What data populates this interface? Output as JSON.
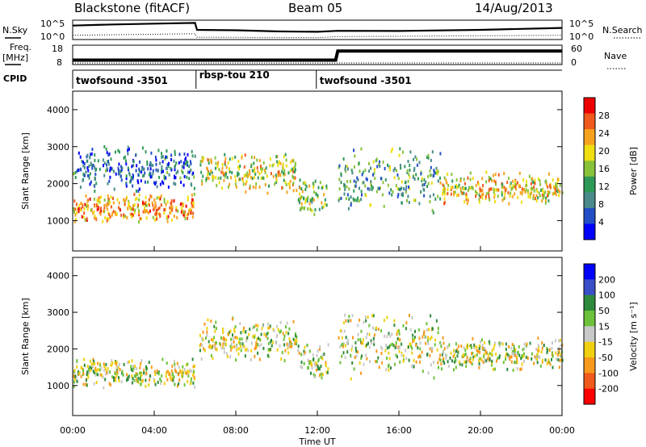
{
  "header": {
    "station": "Blackstone (fitACF)",
    "beam": "Beam 05",
    "date": "14/Aug/2013"
  },
  "panel_labels": {
    "nsky": "N.Sky",
    "nsearch": "N.Search",
    "freq_line1": "Freq.",
    "freq_line2": "[MHz]",
    "nave": "Nave",
    "cpid": "CPID"
  },
  "colors": {
    "power": [
      "#0000ff",
      "#224ec6",
      "#4a8a8a",
      "#2f9a58",
      "#88c23a",
      "#f0de12",
      "#f7a21e",
      "#f05a1c",
      "#ee0000"
    ],
    "velocity": [
      "#ff0000",
      "#f05a1c",
      "#f79a1c",
      "#f0d010",
      "#c8c8c8",
      "#6cc23a",
      "#2e8a3c",
      "#3a4ec8",
      "#0000ff"
    ]
  },
  "chart_data": [
    {
      "type": "line",
      "name": "noise-panel",
      "xlim": [
        0,
        24
      ],
      "left_ticks": [
        "10^5",
        "10^0"
      ],
      "right_ticks": [
        "10^5",
        "10^0"
      ],
      "series": [
        {
          "name": "N.Sky",
          "x": [
            0,
            2,
            4,
            6,
            6.1,
            8,
            10,
            12,
            13,
            16,
            20,
            24
          ],
          "y_frac": [
            0.72,
            0.78,
            0.82,
            0.86,
            0.5,
            0.48,
            0.42,
            0.4,
            0.45,
            0.44,
            0.5,
            0.6
          ]
        },
        {
          "name": "N.Search",
          "x": [
            0,
            6,
            6.1,
            12,
            13,
            24
          ],
          "y_frac": [
            0.22,
            0.3,
            0.12,
            0.1,
            0.15,
            0.22
          ]
        }
      ]
    },
    {
      "type": "line",
      "name": "frequency-panel",
      "xlim": [
        0,
        24
      ],
      "left_ticks": [
        18,
        8
      ],
      "right_ticks": [
        60,
        0
      ],
      "series": [
        {
          "name": "Freq.",
          "x": [
            0,
            12.9,
            13,
            24
          ],
          "y": [
            10.3,
            10.3,
            15.0,
            15.0
          ]
        },
        {
          "name": "Nave",
          "x": [
            0,
            24
          ],
          "y": [
            1,
            1
          ]
        }
      ]
    },
    {
      "type": "table",
      "name": "cpid-panel",
      "segments": [
        {
          "label": "twofsound -3501",
          "start": 0,
          "end": 6.05
        },
        {
          "label": "rbsp-tou 210",
          "start": 6.05,
          "end": 11.95
        },
        {
          "label": "twofsound -3501",
          "start": 11.95,
          "end": 24
        }
      ]
    },
    {
      "type": "heatmap",
      "name": "power",
      "ylabel": "Slant Range [km]",
      "xlim": [
        0,
        24
      ],
      "ylim": [
        180,
        4500
      ],
      "yticks": [
        1000,
        2000,
        3000,
        4000
      ],
      "colorbar_label": "Power [dB]",
      "colorbar_ticks": [
        4,
        8,
        12,
        16,
        20,
        24,
        28
      ],
      "bands": [
        {
          "t0": 0,
          "t1": 6,
          "r0": 950,
          "r1": 1800,
          "level": 0.75
        },
        {
          "t0": 0,
          "t1": 6,
          "r0": 1800,
          "r1": 3100,
          "level": 0.2
        },
        {
          "t0": 6.2,
          "t1": 11,
          "r0": 1700,
          "r1": 2900,
          "level": 0.6
        },
        {
          "t0": 11,
          "t1": 12.5,
          "r0": 1100,
          "r1": 2200,
          "level": 0.5
        },
        {
          "t0": 13,
          "t1": 18,
          "r0": 1200,
          "r1": 3100,
          "level": 0.35
        },
        {
          "t0": 18,
          "t1": 24,
          "r0": 1400,
          "r1": 2400,
          "level": 0.65
        }
      ]
    },
    {
      "type": "heatmap",
      "name": "velocity",
      "ylabel": "Slant Range [km]",
      "xlim": [
        0,
        24
      ],
      "ylim": [
        180,
        4500
      ],
      "yticks": [
        1000,
        2000,
        3000,
        4000
      ],
      "colorbar_label": "Velocity [m s⁻¹]",
      "colorbar_ticks": [
        -200,
        -100,
        -50,
        -15,
        15,
        50,
        100,
        200
      ],
      "bands": [
        {
          "t0": 0,
          "t1": 6,
          "r0": 950,
          "r1": 1800,
          "mean": -15
        },
        {
          "t0": 6.2,
          "t1": 11,
          "r0": 1700,
          "r1": 2900,
          "mean": 20
        },
        {
          "t0": 11,
          "t1": 12.5,
          "r0": 1100,
          "r1": 2200,
          "mean": 30
        },
        {
          "t0": 13,
          "t1": 18,
          "r0": 1200,
          "r1": 3100,
          "mean": -20
        },
        {
          "t0": 18,
          "t1": 24,
          "r0": 1400,
          "r1": 2400,
          "mean": 0
        }
      ]
    }
  ],
  "xaxis": {
    "ticks": [
      "00:00",
      "04:00",
      "08:00",
      "12:00",
      "16:00",
      "20:00",
      "00:00"
    ],
    "label": "Time UT"
  }
}
